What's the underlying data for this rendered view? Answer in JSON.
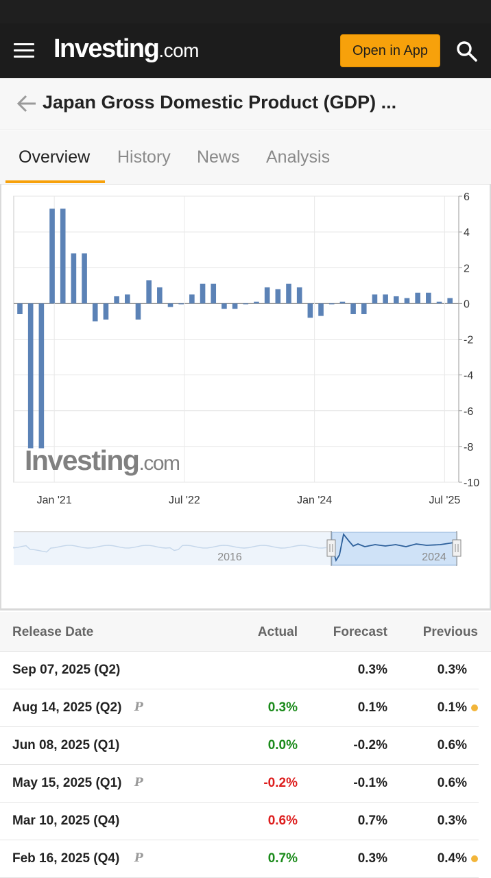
{
  "nav": {
    "brand": "Investing",
    "brand_tld": ".com",
    "open_app_label": "Open in App"
  },
  "page": {
    "title": "Japan Gross Domestic Product (GDP) ..."
  },
  "tabs": [
    {
      "label": "Overview",
      "active": true
    },
    {
      "label": "History",
      "active": false
    },
    {
      "label": "News",
      "active": false
    },
    {
      "label": "Analysis",
      "active": false
    }
  ],
  "chart_data": {
    "type": "bar",
    "x_tick_labels": [
      "Jan '21",
      "Jul '22",
      "Jan '24",
      "Jul '25"
    ],
    "y_ticks": [
      6,
      4,
      2,
      0,
      -2,
      -4,
      -6,
      -8,
      -10
    ],
    "ylim": [
      -10,
      6
    ],
    "grid": true,
    "bar_color": "#5b82b6",
    "values": [
      -0.6,
      -8.1,
      -8.1,
      5.3,
      5.3,
      2.8,
      2.8,
      -1.0,
      -0.9,
      0.4,
      0.5,
      -0.9,
      1.3,
      0.9,
      -0.2,
      0.0,
      0.5,
      1.1,
      1.1,
      -0.3,
      -0.3,
      0.0,
      0.1,
      0.9,
      0.8,
      1.1,
      0.9,
      -0.8,
      -0.7,
      0.0,
      0.1,
      -0.6,
      -0.6,
      0.5,
      0.5,
      0.4,
      0.3,
      0.6,
      0.6,
      0.1,
      0.3
    ],
    "watermark": "Investing.com",
    "navigator": {
      "labels": [
        "2016",
        "2024"
      ]
    }
  },
  "table": {
    "headers": {
      "release_date": "Release Date",
      "actual": "Actual",
      "forecast": "Forecast",
      "previous": "Previous"
    },
    "rows": [
      {
        "date": "Sep 07, 2025 (Q2)",
        "preliminary": false,
        "actual": "",
        "actual_trend": "neu",
        "forecast": "0.3%",
        "previous": "0.3%",
        "revised": false
      },
      {
        "date": "Aug 14, 2025 (Q2)",
        "preliminary": true,
        "actual": "0.3%",
        "actual_trend": "pos",
        "forecast": "0.1%",
        "previous": "0.1%",
        "revised": true
      },
      {
        "date": "Jun 08, 2025 (Q1)",
        "preliminary": false,
        "actual": "0.0%",
        "actual_trend": "pos",
        "forecast": "-0.2%",
        "previous": "0.6%",
        "revised": false
      },
      {
        "date": "May 15, 2025 (Q1)",
        "preliminary": true,
        "actual": "-0.2%",
        "actual_trend": "neg",
        "forecast": "-0.1%",
        "previous": "0.6%",
        "revised": false
      },
      {
        "date": "Mar 10, 2025 (Q4)",
        "preliminary": false,
        "actual": "0.6%",
        "actual_trend": "neg",
        "forecast": "0.7%",
        "previous": "0.3%",
        "revised": false
      },
      {
        "date": "Feb 16, 2025 (Q4)",
        "preliminary": true,
        "actual": "0.7%",
        "actual_trend": "pos",
        "forecast": "0.3%",
        "previous": "0.4%",
        "revised": true
      }
    ],
    "preliminary_mark": "P",
    "colors": {
      "positive": "#1a8a1a",
      "negative": "#dd1d1d",
      "revised_dot": "#f2b53a"
    }
  }
}
